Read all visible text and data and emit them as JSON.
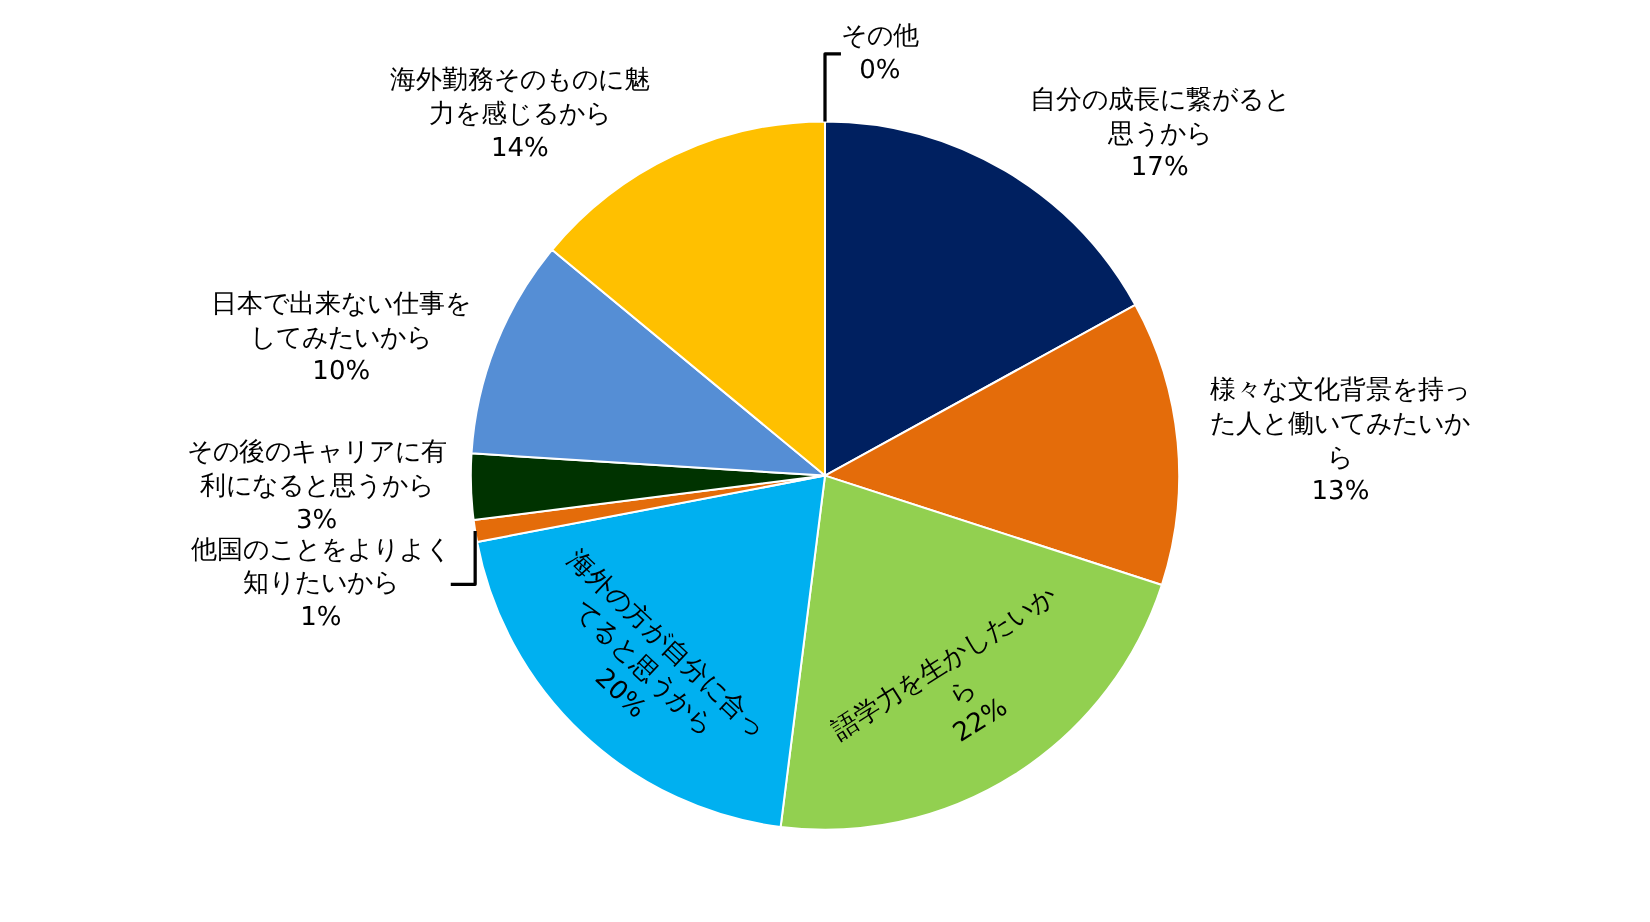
{
  "chart_data": {
    "type": "pie",
    "categories": [
      "自分の成長に繋がると思うから",
      "様々な文化背景を持った人と働いてみたいから",
      "語学力を生かしたいから",
      "海外の方が自分に合ってると思うから",
      "他国のことをよりよく知りたいから",
      "その後のキャリアに有利になると思うから",
      "日本で出来ない仕事をしてみたいから",
      "海外勤務そのものに魅力を感じるから",
      "その他"
    ],
    "values": [
      17,
      13,
      22,
      20,
      1,
      3,
      10,
      14,
      0
    ],
    "value_labels": [
      "17%",
      "13%",
      "22%",
      "20%",
      "1%",
      "3%",
      "10%",
      "14%",
      "0%"
    ],
    "colors": [
      "#002060",
      "#e46c0a",
      "#92d050",
      "#00b0f0",
      "#e46c0a",
      "#003300",
      "#558ed5",
      "#ffc000",
      "#a5a5a5"
    ],
    "legend": false
  }
}
